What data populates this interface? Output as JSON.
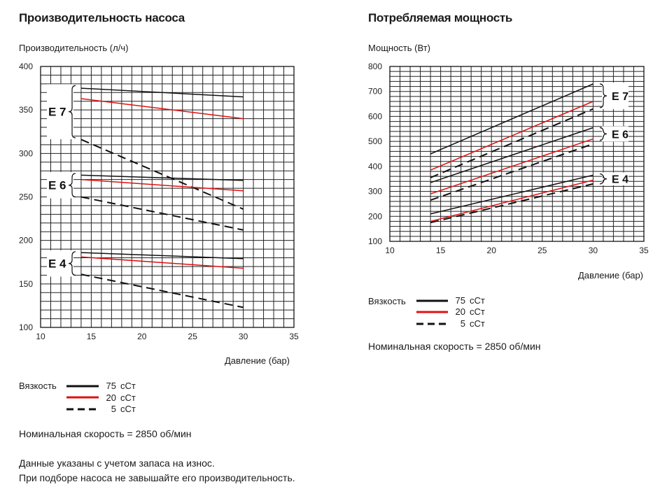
{
  "colors": {
    "black": "#111111",
    "red": "#e01010",
    "grid": "#222222"
  },
  "left": {
    "title": "Производительность насоса",
    "ylabel": "Производительность (л/ч)",
    "xlabel": "Давление (бар)"
  },
  "right": {
    "title": "Потребляемая мощность",
    "ylabel": "Мощность (Вт)",
    "xlabel": "Давление (бар)"
  },
  "legend": {
    "title": "Вязкость",
    "items": [
      {
        "value": "75",
        "unit": "сСт",
        "color": "#111111",
        "style": "solid"
      },
      {
        "value": "20",
        "unit": "сСт",
        "color": "#e01010",
        "style": "solid"
      },
      {
        "value": "5",
        "unit": "сСт",
        "color": "#111111",
        "style": "dashed"
      }
    ]
  },
  "nominal_speed": "Номинальная скорость = 2850 об/мин",
  "footnote_1": "Данные указаны с учетом запаса на износ.",
  "footnote_2": "При подборе насоса не завышайте его производительность.",
  "chart_data": [
    {
      "type": "line",
      "title": "Производительность насоса",
      "xlabel": "Давление (бар)",
      "ylabel": "Производительность (л/ч)",
      "xlim": [
        10,
        35
      ],
      "ylim": [
        100,
        400
      ],
      "xticks": [
        10,
        15,
        20,
        25,
        30,
        35
      ],
      "yticks": [
        100,
        150,
        200,
        250,
        300,
        350,
        400
      ],
      "grid": true,
      "groups": [
        {
          "label": "E 7",
          "range": [
            318,
            378
          ]
        },
        {
          "label": "E 6",
          "range": [
            250,
            277
          ]
        },
        {
          "label": "E 4",
          "range": [
            160,
            187
          ]
        }
      ],
      "series": [
        {
          "group": "E 7",
          "viscosity": "75 сСт",
          "style": "black-solid",
          "x": [
            14,
            30
          ],
          "y": [
            375,
            365
          ]
        },
        {
          "group": "E 7",
          "viscosity": "20 сСт",
          "style": "red-solid",
          "x": [
            14,
            30
          ],
          "y": [
            363,
            340
          ]
        },
        {
          "group": "E 7",
          "viscosity": "5 сСт",
          "style": "black-dashed",
          "x": [
            14,
            30
          ],
          "y": [
            316,
            236
          ]
        },
        {
          "group": "E 6",
          "viscosity": "75 сСт",
          "style": "black-solid",
          "x": [
            14,
            30
          ],
          "y": [
            275,
            269
          ]
        },
        {
          "group": "E 6",
          "viscosity": "20 сСт",
          "style": "red-solid",
          "x": [
            14,
            30
          ],
          "y": [
            270,
            257
          ]
        },
        {
          "group": "E 6",
          "viscosity": "5 сСт",
          "style": "black-dashed",
          "x": [
            14,
            30
          ],
          "y": [
            250,
            212
          ]
        },
        {
          "group": "E 4",
          "viscosity": "75 сСт",
          "style": "black-solid",
          "x": [
            14,
            30
          ],
          "y": [
            186,
            179
          ]
        },
        {
          "group": "E 4",
          "viscosity": "20 сСт",
          "style": "red-solid",
          "x": [
            14,
            30
          ],
          "y": [
            181,
            168
          ]
        },
        {
          "group": "E 4",
          "viscosity": "5 сСт",
          "style": "black-dashed",
          "x": [
            14,
            30
          ],
          "y": [
            161,
            123
          ]
        }
      ]
    },
    {
      "type": "line",
      "title": "Потребляемая мощность",
      "xlabel": "Давление (бар)",
      "ylabel": "Мощность (Вт)",
      "xlim": [
        10,
        35
      ],
      "ylim": [
        100,
        800
      ],
      "xticks": [
        10,
        15,
        20,
        25,
        30,
        35
      ],
      "yticks": [
        100,
        200,
        300,
        400,
        500,
        600,
        700,
        800
      ],
      "grid": true,
      "groups": [
        {
          "label": "E 7",
          "range": [
            635,
            730
          ]
        },
        {
          "label": "E 6",
          "range": [
            505,
            555
          ]
        },
        {
          "label": "E 4",
          "range": [
            330,
            370
          ]
        }
      ],
      "series": [
        {
          "group": "E 7",
          "viscosity": "75 сСт",
          "style": "black-solid",
          "x": [
            14,
            30
          ],
          "y": [
            450,
            730
          ]
        },
        {
          "group": "E 7",
          "viscosity": "20 сСт",
          "style": "red-solid",
          "x": [
            14,
            30
          ],
          "y": [
            385,
            660
          ]
        },
        {
          "group": "E 7",
          "viscosity": "5 сСт",
          "style": "black-dashed",
          "x": [
            14,
            30
          ],
          "y": [
            355,
            630
          ]
        },
        {
          "group": "E 6",
          "viscosity": "75 сСт",
          "style": "black-solid",
          "x": [
            14,
            30
          ],
          "y": [
            335,
            555
          ]
        },
        {
          "group": "E 6",
          "viscosity": "20 сСт",
          "style": "red-solid",
          "x": [
            14,
            30
          ],
          "y": [
            290,
            510
          ]
        },
        {
          "group": "E 6",
          "viscosity": "5 сСт",
          "style": "black-dashed",
          "x": [
            14,
            30
          ],
          "y": [
            265,
            490
          ]
        },
        {
          "group": "E 4",
          "viscosity": "75 сСт",
          "style": "black-solid",
          "x": [
            14,
            30
          ],
          "y": [
            210,
            365
          ]
        },
        {
          "group": "E 4",
          "viscosity": "20 сСт",
          "style": "red-solid",
          "x": [
            14,
            30
          ],
          "y": [
            180,
            345
          ]
        },
        {
          "group": "E 4",
          "viscosity": "5 сСт",
          "style": "black-dashed",
          "x": [
            14,
            30
          ],
          "y": [
            175,
            330
          ]
        }
      ]
    }
  ]
}
